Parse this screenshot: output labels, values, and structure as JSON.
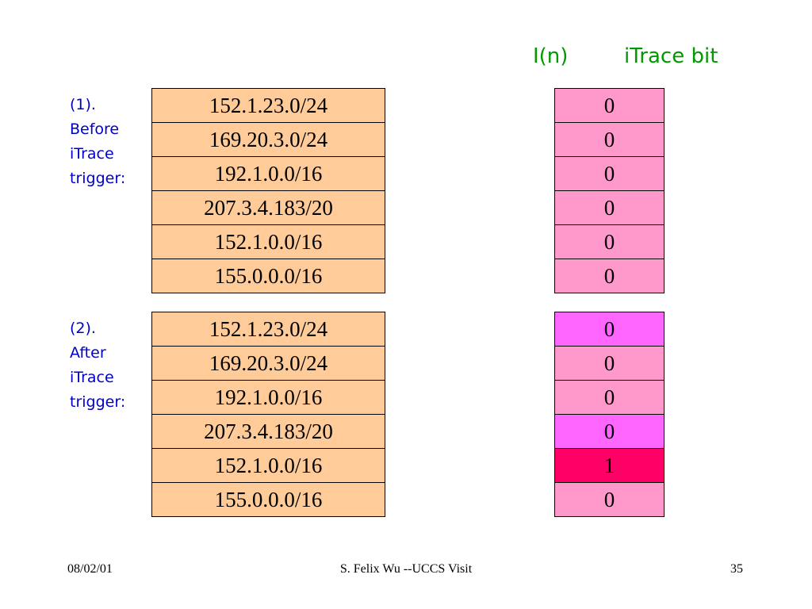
{
  "header": {
    "col1": "I(n)",
    "col2": "iTrace bit"
  },
  "sections": [
    {
      "label": [
        "(1).",
        "Before",
        "iTrace",
        "trigger:"
      ],
      "prefixes": [
        "152.1.23.0/24",
        "169.20.3.0/24",
        "192.1.0.0/16",
        "207.3.4.183/20",
        "152.1.0.0/16",
        "155.0.0.0/16"
      ],
      "bits": [
        0,
        0,
        0,
        0,
        0,
        0
      ],
      "bit_colors": [
        "#ff99cc",
        "#ff99cc",
        "#ff99cc",
        "#ff99cc",
        "#ff99cc",
        "#ff99cc"
      ]
    },
    {
      "label": [
        "(2).",
        "After",
        "iTrace",
        "trigger:"
      ],
      "prefixes": [
        "152.1.23.0/24",
        "169.20.3.0/24",
        "192.1.0.0/16",
        "207.3.4.183/20",
        "152.1.0.0/16",
        "155.0.0.0/16"
      ],
      "bits": [
        0,
        0,
        0,
        0,
        1,
        0
      ],
      "bit_colors": [
        "#ff66ff",
        "#ff99cc",
        "#ff99cc",
        "#ff66ff",
        "#ff0066",
        "#ff99cc"
      ]
    }
  ],
  "prefix_color": "#ffcc99",
  "footer": {
    "date": "08/02/01",
    "title": "S. Felix Wu --UCCS Visit",
    "page": 35
  }
}
